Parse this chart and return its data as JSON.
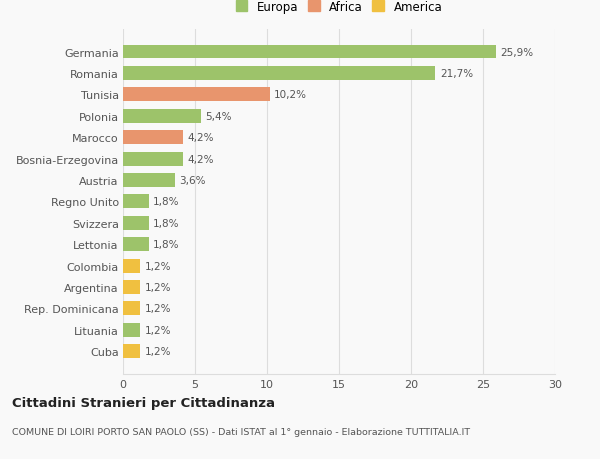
{
  "categories": [
    "Cuba",
    "Lituania",
    "Rep. Dominicana",
    "Argentina",
    "Colombia",
    "Lettonia",
    "Svizzera",
    "Regno Unito",
    "Austria",
    "Bosnia-Erzegovina",
    "Marocco",
    "Polonia",
    "Tunisia",
    "Romania",
    "Germania"
  ],
  "values": [
    1.2,
    1.2,
    1.2,
    1.2,
    1.2,
    1.8,
    1.8,
    1.8,
    3.6,
    4.2,
    4.2,
    5.4,
    10.2,
    21.7,
    25.9
  ],
  "labels": [
    "1,2%",
    "1,2%",
    "1,2%",
    "1,2%",
    "1,2%",
    "1,8%",
    "1,8%",
    "1,8%",
    "3,6%",
    "4,2%",
    "4,2%",
    "5,4%",
    "10,2%",
    "21,7%",
    "25,9%"
  ],
  "colors": [
    "#f0c040",
    "#9dc36a",
    "#f0c040",
    "#f0c040",
    "#f0c040",
    "#9dc36a",
    "#9dc36a",
    "#9dc36a",
    "#9dc36a",
    "#9dc36a",
    "#e8956d",
    "#9dc36a",
    "#e8956d",
    "#9dc36a",
    "#9dc36a"
  ],
  "legend_labels": [
    "Europa",
    "Africa",
    "America"
  ],
  "legend_colors": [
    "#9dc36a",
    "#e8956d",
    "#f0c040"
  ],
  "title": "Cittadini Stranieri per Cittadinanza",
  "subtitle": "COMUNE DI LOIRI PORTO SAN PAOLO (SS) - Dati ISTAT al 1° gennaio - Elaborazione TUTTITALIA.IT",
  "xlim": [
    0,
    30
  ],
  "xticks": [
    0,
    5,
    10,
    15,
    20,
    25,
    30
  ],
  "bg_color": "#f9f9f9",
  "grid_color": "#dddddd",
  "bar_height": 0.65
}
